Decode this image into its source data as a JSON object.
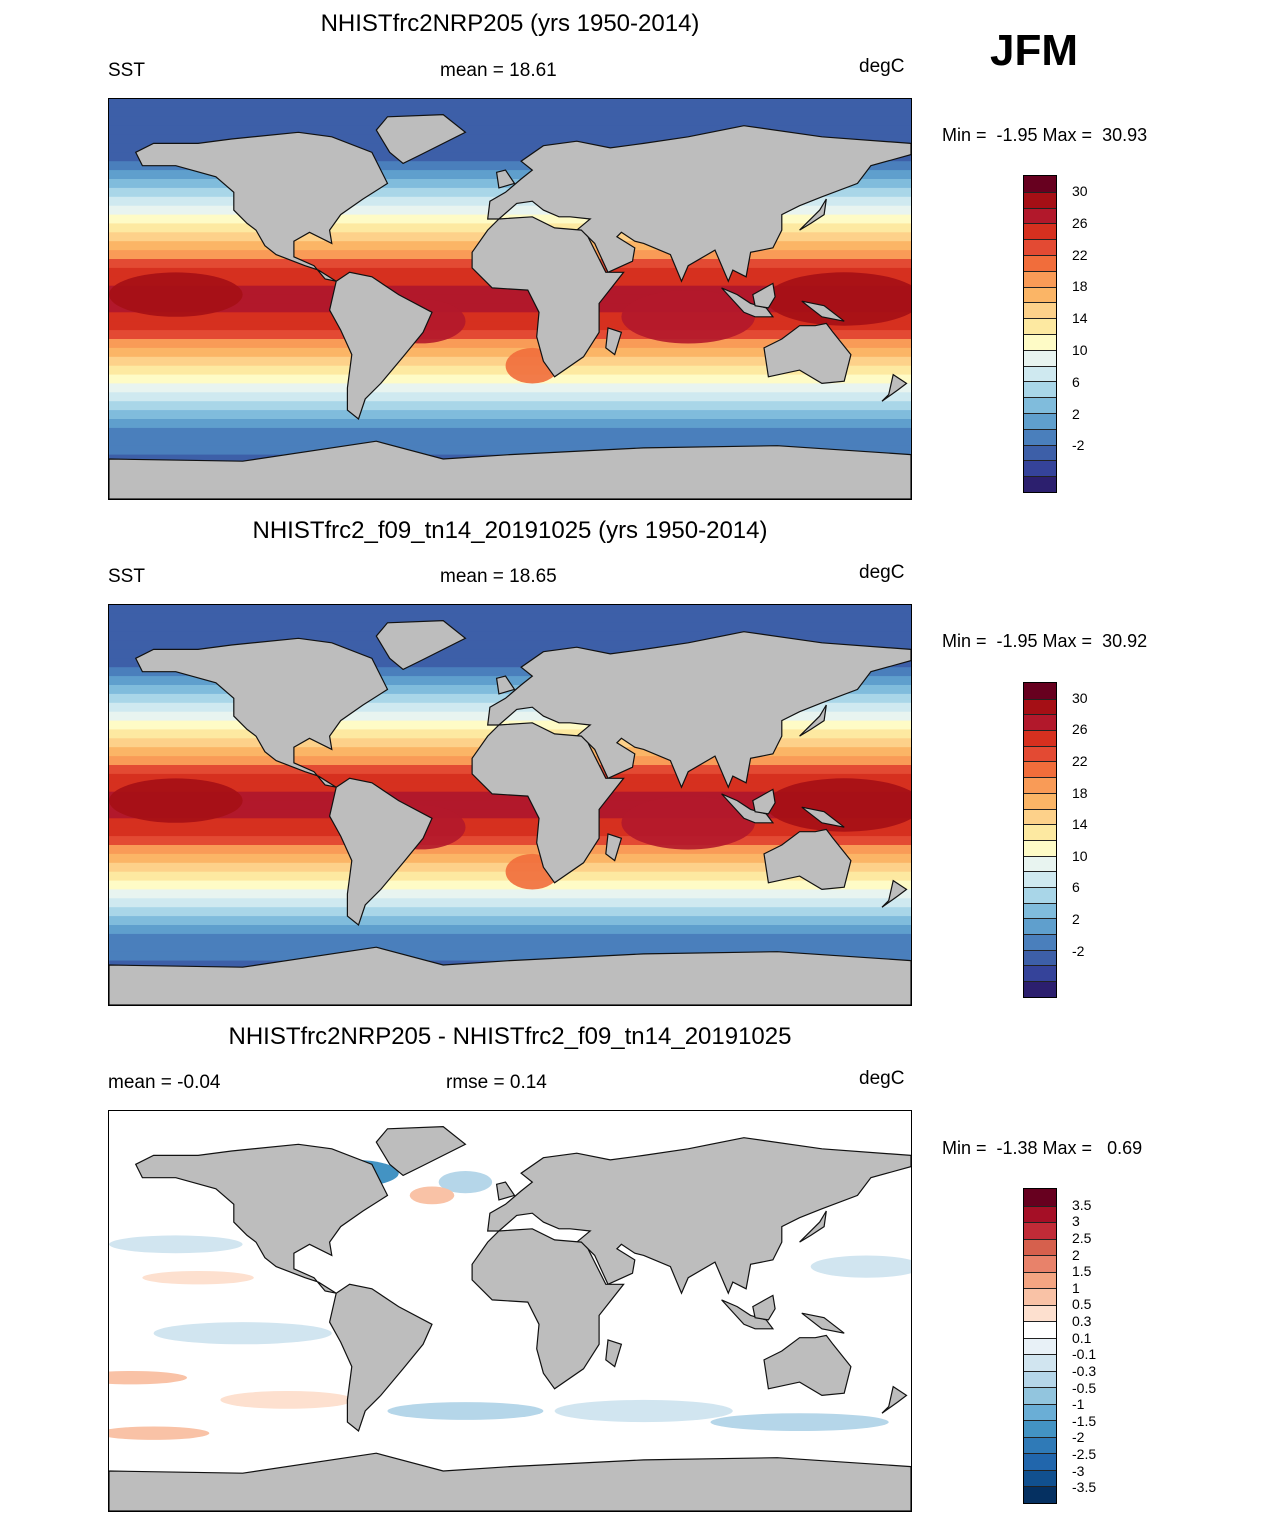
{
  "season": "JFM",
  "land_color": "#bdbdbd",
  "panels": [
    {
      "title": "NHISTfrc2NRP205 (yrs 1950-2014)",
      "left_label": "SST",
      "center_label": "mean =  18.61",
      "right_label": "degC",
      "minmax": "Min =  -1.95 Max =  30.93",
      "field": "sst"
    },
    {
      "title": "NHISTfrc2_f09_tn14_20191025 (yrs 1950-2014)",
      "left_label": "SST",
      "center_label": "mean =  18.65",
      "right_label": "degC",
      "minmax": "Min =  -1.95 Max =  30.92",
      "field": "sst"
    },
    {
      "title": "NHISTfrc2NRP205 - NHISTfrc2_f09_tn14_20191025",
      "left_label": "mean =  -0.04",
      "center_label": "rmse =   0.14",
      "right_label": "degC",
      "minmax": "Min =  -1.38 Max =   0.69",
      "field": "diff"
    }
  ],
  "sst_colorbar": {
    "colors": [
      "#67001f",
      "#a50f15",
      "#b2182b",
      "#d6301f",
      "#e34a33",
      "#f16d3b",
      "#f99b57",
      "#fbb566",
      "#fdd18a",
      "#fde9a1",
      "#fefbc6",
      "#e8f4f0",
      "#cfe9f0",
      "#a9d6e8",
      "#80bcdc",
      "#5f9fcd",
      "#4a7fbc",
      "#3d5fa8",
      "#35439a",
      "#2c1f6e"
    ],
    "labels": [
      "30",
      "26",
      "22",
      "18",
      "14",
      "10",
      "6",
      "2",
      "-2"
    ]
  },
  "diff_colorbar": {
    "colors": [
      "#67001f",
      "#a50f26",
      "#c12b37",
      "#d6604d",
      "#e8826a",
      "#f4a582",
      "#f9c2a6",
      "#fde0cf",
      "#ffffff",
      "#e8f1f7",
      "#d1e5f0",
      "#b5d6e9",
      "#92c5de",
      "#6aaed6",
      "#4393c3",
      "#2f7ab7",
      "#2166ac",
      "#11508f",
      "#053061"
    ],
    "labels": [
      "3.5",
      "3",
      "2.5",
      "2",
      "1.5",
      "1",
      "0.5",
      "0.3",
      "0.1",
      "-0.1",
      "-0.3",
      "-0.5",
      "-1",
      "-1.5",
      "-2",
      "-2.5",
      "-3",
      "-3.5"
    ]
  }
}
